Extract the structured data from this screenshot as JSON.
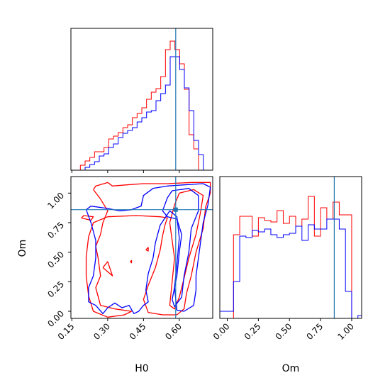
{
  "chart_data": {
    "type": "corner",
    "parameters": [
      "H0",
      "Om"
    ],
    "truth": {
      "H0": 0.585,
      "Om": 0.86
    },
    "truth_color": "#1f77b4",
    "series": [
      {
        "color": "#ff0000"
      },
      {
        "color": "#0000ff"
      }
    ],
    "panels": [
      {
        "id": "hist-H0",
        "type": "histogram",
        "xlim": [
          0.146,
          0.74
        ],
        "ylim": [
          0,
          1
        ],
        "bins": [
          0.146,
          0.1658,
          0.1856,
          0.2054,
          0.2252,
          0.245,
          0.2648,
          0.2846,
          0.3044,
          0.3242,
          0.344,
          0.3638,
          0.3836,
          0.4034,
          0.4232,
          0.443,
          0.4628,
          0.4826,
          0.5024,
          0.5222,
          0.542,
          0.5618,
          0.5816,
          0.6014,
          0.6212,
          0.641,
          0.6608,
          0.6806,
          0.7004,
          0.7202,
          0.74
        ],
        "red": [
          0.0,
          0.0,
          0.035,
          0.065,
          0.09,
          0.13,
          0.13,
          0.16,
          0.22,
          0.24,
          0.265,
          0.3,
          0.32,
          0.37,
          0.4,
          0.44,
          0.5,
          0.55,
          0.575,
          0.66,
          0.85,
          0.91,
          0.85,
          0.75,
          0.57,
          0.25,
          0.15,
          0.0,
          0.0,
          0.0
        ],
        "blue": [
          0.0,
          0.0,
          0.0,
          0.02,
          0.04,
          0.06,
          0.1,
          0.115,
          0.16,
          0.185,
          0.23,
          0.26,
          0.28,
          0.3,
          0.34,
          0.37,
          0.41,
          0.42,
          0.49,
          0.54,
          0.6,
          0.8,
          0.8,
          0.71,
          0.58,
          0.42,
          0.21,
          0.11,
          0.0,
          0.0
        ]
      },
      {
        "id": "hist-Om",
        "type": "histogram",
        "xlim": [
          -0.06,
          1.08
        ],
        "ylim": [
          0,
          1
        ],
        "bins": [
          -0.06,
          0,
          0.05,
          0.1,
          0.15,
          0.2,
          0.25,
          0.3,
          0.35,
          0.4,
          0.45,
          0.5,
          0.55,
          0.6,
          0.65,
          0.7,
          0.75,
          0.8,
          0.85,
          0.9,
          0.95,
          1.0,
          1.05,
          1.08
        ],
        "red": [
          0.0,
          0.0,
          0.59,
          0.72,
          0.72,
          0.58,
          0.71,
          0.69,
          0.68,
          0.76,
          0.67,
          0.72,
          0.65,
          0.7,
          0.86,
          0.58,
          0.78,
          0.7,
          0.82,
          0.73,
          0.73,
          0.0,
          0.0
        ],
        "blue": [
          0.05,
          0.05,
          0.26,
          0.58,
          0.57,
          0.62,
          0.61,
          0.63,
          0.59,
          0.57,
          0.59,
          0.6,
          0.65,
          0.55,
          0.66,
          0.63,
          0.63,
          0.7,
          0.7,
          0.63,
          0.19,
          0.0,
          0.02
        ]
      },
      {
        "id": "contour-H0-Om",
        "type": "contour",
        "x": "H0",
        "y": "Om",
        "xlim": [
          0.146,
          0.74
        ],
        "ylim": [
          -0.06,
          1.14
        ],
        "red_contours": [
          [
            [
              0.24,
              1.03
            ],
            [
              0.25,
              1.06
            ],
            [
              0.3,
              1.09
            ],
            [
              0.32,
              1.06
            ],
            [
              0.38,
              1.07
            ],
            [
              0.45,
              1.08
            ],
            [
              0.55,
              1.08
            ],
            [
              0.65,
              1.09
            ],
            [
              0.73,
              1.09
            ],
            [
              0.73,
              1.0
            ],
            [
              0.71,
              0.88
            ],
            [
              0.7,
              0.7
            ],
            [
              0.67,
              0.5
            ],
            [
              0.65,
              0.3
            ],
            [
              0.63,
              0.15
            ],
            [
              0.62,
              0.02
            ],
            [
              0.59,
              -0.03
            ],
            [
              0.53,
              -0.03
            ],
            [
              0.47,
              -0.01
            ],
            [
              0.45,
              0.1
            ],
            [
              0.47,
              0.22
            ],
            [
              0.5,
              0.37
            ],
            [
              0.52,
              0.52
            ],
            [
              0.53,
              0.64
            ],
            [
              0.54,
              0.73
            ],
            [
              0.55,
              0.79
            ],
            [
              0.52,
              0.8
            ],
            [
              0.42,
              0.81
            ],
            [
              0.3,
              0.8
            ],
            [
              0.24,
              0.75
            ],
            [
              0.22,
              0.63
            ],
            [
              0.21,
              0.46
            ],
            [
              0.21,
              0.3
            ],
            [
              0.22,
              0.13
            ],
            [
              0.24,
              0.0
            ],
            [
              0.3,
              -0.05
            ],
            [
              0.37,
              -0.03
            ],
            [
              0.4,
              0.0
            ],
            [
              0.33,
              0.02
            ],
            [
              0.27,
              0.05
            ],
            [
              0.25,
              0.2
            ],
            [
              0.27,
              0.3
            ],
            [
              0.26,
              0.45
            ],
            [
              0.25,
              0.55
            ],
            [
              0.27,
              0.65
            ],
            [
              0.28,
              0.75
            ],
            [
              0.3,
              0.85
            ],
            [
              0.27,
              0.95
            ],
            [
              0.24,
              1.03
            ]
          ],
          [
            [
              0.56,
              0.75
            ],
            [
              0.58,
              0.9
            ],
            [
              0.6,
              1.0
            ],
            [
              0.66,
              1.03
            ],
            [
              0.7,
              0.98
            ],
            [
              0.69,
              0.85
            ],
            [
              0.67,
              0.65
            ],
            [
              0.64,
              0.45
            ],
            [
              0.62,
              0.28
            ],
            [
              0.6,
              0.12
            ],
            [
              0.58,
              0.02
            ],
            [
              0.56,
              0.05
            ],
            [
              0.57,
              0.25
            ],
            [
              0.58,
              0.45
            ],
            [
              0.57,
              0.6
            ],
            [
              0.56,
              0.75
            ]
          ],
          [
            [
              0.19,
              0.79
            ],
            [
              0.2,
              0.81
            ],
            [
              0.24,
              0.8
            ],
            [
              0.23,
              0.77
            ],
            [
              0.19,
              0.79
            ]
          ],
          [
            [
              0.28,
              0.37
            ],
            [
              0.3,
              0.42
            ],
            [
              0.32,
              0.3
            ],
            [
              0.28,
              0.37
            ]
          ],
          [
            [
              0.46,
              0.52
            ],
            [
              0.47,
              0.54
            ],
            [
              0.47,
              0.51
            ],
            [
              0.46,
              0.52
            ]
          ],
          [
            [
              0.395,
              0.42
            ],
            [
              0.4,
              0.43
            ],
            [
              0.4,
              0.41
            ],
            [
              0.395,
              0.42
            ]
          ]
        ],
        "blue_contours": [
          [
            [
              0.21,
              0.86
            ],
            [
              0.23,
              0.89
            ],
            [
              0.3,
              0.87
            ],
            [
              0.35,
              0.85
            ],
            [
              0.4,
              0.86
            ],
            [
              0.44,
              0.89
            ],
            [
              0.45,
              0.98
            ],
            [
              0.49,
              1.04
            ],
            [
              0.55,
              1.06
            ],
            [
              0.62,
              1.07
            ],
            [
              0.7,
              1.08
            ],
            [
              0.73,
              1.05
            ],
            [
              0.72,
              0.9
            ],
            [
              0.7,
              0.75
            ],
            [
              0.69,
              0.6
            ],
            [
              0.68,
              0.45
            ],
            [
              0.67,
              0.3
            ],
            [
              0.67,
              0.18
            ],
            [
              0.66,
              0.05
            ],
            [
              0.62,
              0.0
            ],
            [
              0.59,
              0.01
            ],
            [
              0.58,
              0.2
            ],
            [
              0.59,
              0.4
            ],
            [
              0.6,
              0.62
            ],
            [
              0.59,
              0.8
            ],
            [
              0.56,
              0.85
            ],
            [
              0.52,
              0.73
            ],
            [
              0.5,
              0.58
            ],
            [
              0.49,
              0.45
            ],
            [
              0.47,
              0.32
            ],
            [
              0.46,
              0.18
            ],
            [
              0.47,
              0.08
            ],
            [
              0.45,
              0.05
            ],
            [
              0.43,
              0.0
            ],
            [
              0.41,
              -0.02
            ],
            [
              0.39,
              0.05
            ],
            [
              0.36,
              0.03
            ],
            [
              0.33,
              0.07
            ],
            [
              0.3,
              0.03
            ],
            [
              0.28,
              -0.02
            ],
            [
              0.25,
              0.05
            ],
            [
              0.22,
              0.08
            ],
            [
              0.22,
              0.2
            ],
            [
              0.24,
              0.3
            ],
            [
              0.25,
              0.45
            ],
            [
              0.25,
              0.6
            ],
            [
              0.23,
              0.75
            ],
            [
              0.21,
              0.86
            ]
          ],
          [
            [
              0.53,
              0.85
            ],
            [
              0.55,
              0.96
            ],
            [
              0.57,
              1.02
            ],
            [
              0.64,
              1.04
            ],
            [
              0.68,
              0.98
            ],
            [
              0.68,
              0.85
            ],
            [
              0.65,
              0.7
            ],
            [
              0.64,
              0.5
            ],
            [
              0.62,
              0.3
            ],
            [
              0.61,
              0.12
            ],
            [
              0.58,
              0.04
            ],
            [
              0.57,
              0.1
            ],
            [
              0.59,
              0.3
            ],
            [
              0.6,
              0.5
            ],
            [
              0.61,
              0.65
            ],
            [
              0.59,
              0.78
            ],
            [
              0.55,
              0.8
            ],
            [
              0.53,
              0.85
            ]
          ]
        ]
      }
    ],
    "axes": {
      "H0": {
        "label": "H0",
        "ticks": [
          0.15,
          0.3,
          0.45,
          0.6
        ],
        "tick_labels": [
          "0.15",
          "0.30",
          "0.45",
          "0.60"
        ]
      },
      "Om": {
        "label": "Om",
        "ticks": [
          0.0,
          0.25,
          0.5,
          0.75,
          1.0
        ],
        "tick_labels": [
          "0.00",
          "0.25",
          "0.50",
          "0.75",
          "1.00"
        ]
      }
    },
    "grid": false
  }
}
